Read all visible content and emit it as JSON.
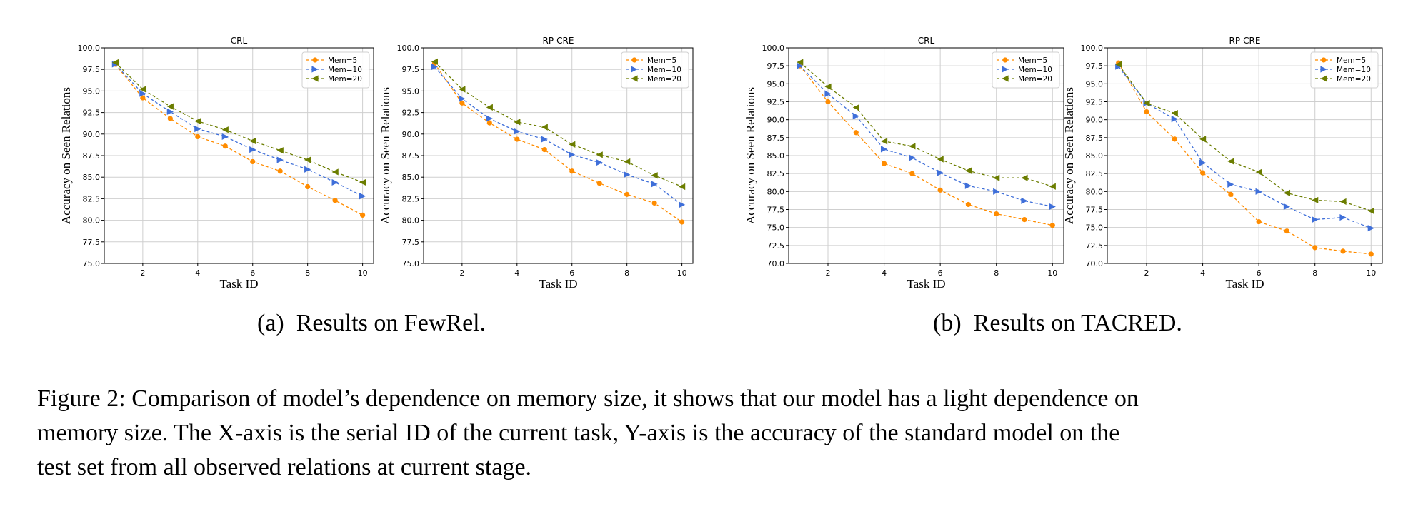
{
  "figure": {
    "sub_a": "(a) Results on FewRel.",
    "sub_b": "(b) Results on TACRED.",
    "caption_lines": [
      "Figure 2: Comparison of model’s dependence on memory size, it shows that our model has a light dependence on",
      "memory size.  The X-axis is the serial ID of the current task, Y-axis is the accuracy of the standard model on the",
      "test set from all observed relations at current stage."
    ]
  },
  "series_colors": {
    "Mem=5": "#ff8c00",
    "Mem=10": "#3f6fd9",
    "Mem=20": "#6b7d00"
  },
  "series_markers": {
    "Mem=5": "circle",
    "Mem=10": "triangle-right",
    "Mem=20": "triangle-left"
  },
  "chart_data": [
    {
      "type": "line",
      "group": "FewRel",
      "title": "CRL",
      "xlabel": "Task ID",
      "ylabel": "Accuracy on Seen Relations",
      "ylim": [
        75.0,
        100.0
      ],
      "xlim": [
        0.6,
        10.4
      ],
      "xticks": [
        2,
        4,
        6,
        8,
        10
      ],
      "yticks": [
        75.0,
        77.5,
        80.0,
        82.5,
        85.0,
        87.5,
        90.0,
        92.5,
        95.0,
        97.5,
        100.0
      ],
      "grid": true,
      "legend": "top-right",
      "x": [
        1,
        2,
        3,
        4,
        5,
        6,
        7,
        8,
        9,
        10
      ],
      "series": [
        {
          "name": "Mem=5",
          "values": [
            98.1,
            94.2,
            91.8,
            89.7,
            88.6,
            86.8,
            85.7,
            83.9,
            82.3,
            80.6
          ]
        },
        {
          "name": "Mem=10",
          "values": [
            98.1,
            94.7,
            92.6,
            90.6,
            89.7,
            88.2,
            87.0,
            85.9,
            84.4,
            82.8
          ]
        },
        {
          "name": "Mem=20",
          "values": [
            98.3,
            95.2,
            93.2,
            91.5,
            90.5,
            89.2,
            88.1,
            87.0,
            85.6,
            84.4
          ]
        }
      ]
    },
    {
      "type": "line",
      "group": "FewRel",
      "title": "RP-CRE",
      "xlabel": "Task ID",
      "ylabel": "Accuracy on Seen Relations",
      "ylim": [
        75.0,
        100.0
      ],
      "xlim": [
        0.6,
        10.4
      ],
      "xticks": [
        2,
        4,
        6,
        8,
        10
      ],
      "yticks": [
        75.0,
        77.5,
        80.0,
        82.5,
        85.0,
        87.5,
        90.0,
        92.5,
        95.0,
        97.5,
        100.0
      ],
      "grid": true,
      "legend": "top-right",
      "x": [
        1,
        2,
        3,
        4,
        5,
        6,
        7,
        8,
        9,
        10
      ],
      "series": [
        {
          "name": "Mem=5",
          "values": [
            98.2,
            93.6,
            91.3,
            89.4,
            88.2,
            85.7,
            84.3,
            83.0,
            82.0,
            79.8
          ]
        },
        {
          "name": "Mem=10",
          "values": [
            97.8,
            94.1,
            91.8,
            90.3,
            89.4,
            87.6,
            86.7,
            85.3,
            84.2,
            81.8
          ]
        },
        {
          "name": "Mem=20",
          "values": [
            98.4,
            95.2,
            93.1,
            91.4,
            90.8,
            88.8,
            87.6,
            86.8,
            85.2,
            83.9
          ]
        }
      ]
    },
    {
      "type": "line",
      "group": "TACRED",
      "title": "CRL",
      "xlabel": "Task ID",
      "ylabel": "Accuracy on Seen Relations",
      "ylim": [
        70.0,
        100.0
      ],
      "xlim": [
        0.6,
        10.4
      ],
      "xticks": [
        2,
        4,
        6,
        8,
        10
      ],
      "yticks": [
        70.0,
        72.5,
        75.0,
        77.5,
        80.0,
        82.5,
        85.0,
        87.5,
        90.0,
        92.5,
        95.0,
        97.5,
        100.0
      ],
      "grid": true,
      "legend": "top-right",
      "x": [
        1,
        2,
        3,
        4,
        5,
        6,
        7,
        8,
        9,
        10
      ],
      "series": [
        {
          "name": "Mem=5",
          "values": [
            97.5,
            92.5,
            88.2,
            83.9,
            82.5,
            80.2,
            78.2,
            76.9,
            76.1,
            75.3
          ]
        },
        {
          "name": "Mem=10",
          "values": [
            97.5,
            93.6,
            90.5,
            85.9,
            84.7,
            82.6,
            80.8,
            80.0,
            78.7,
            77.9
          ]
        },
        {
          "name": "Mem=20",
          "values": [
            98.0,
            94.6,
            91.7,
            87.0,
            86.3,
            84.5,
            82.9,
            81.9,
            81.9,
            80.7
          ]
        }
      ]
    },
    {
      "type": "line",
      "group": "TACRED",
      "title": "RP-CRE",
      "xlabel": "Task ID",
      "ylabel": "Accuracy on Seen Relations",
      "ylim": [
        70.0,
        100.0
      ],
      "xlim": [
        0.6,
        10.4
      ],
      "xticks": [
        2,
        4,
        6,
        8,
        10
      ],
      "yticks": [
        70.0,
        72.5,
        75.0,
        77.5,
        80.0,
        82.5,
        85.0,
        87.5,
        90.0,
        92.5,
        95.0,
        97.5,
        100.0
      ],
      "grid": true,
      "legend": "top-right",
      "x": [
        1,
        2,
        3,
        4,
        5,
        6,
        7,
        8,
        9,
        10
      ],
      "series": [
        {
          "name": "Mem=5",
          "values": [
            97.9,
            91.1,
            87.3,
            82.6,
            79.6,
            75.8,
            74.5,
            72.2,
            71.7,
            71.3
          ]
        },
        {
          "name": "Mem=10",
          "values": [
            97.4,
            92.3,
            90.1,
            84.0,
            81.0,
            80.0,
            77.9,
            76.1,
            76.4,
            74.9
          ]
        },
        {
          "name": "Mem=20",
          "values": [
            97.7,
            92.3,
            90.9,
            87.3,
            84.2,
            82.7,
            79.8,
            78.8,
            78.6,
            77.3
          ]
        }
      ]
    }
  ]
}
